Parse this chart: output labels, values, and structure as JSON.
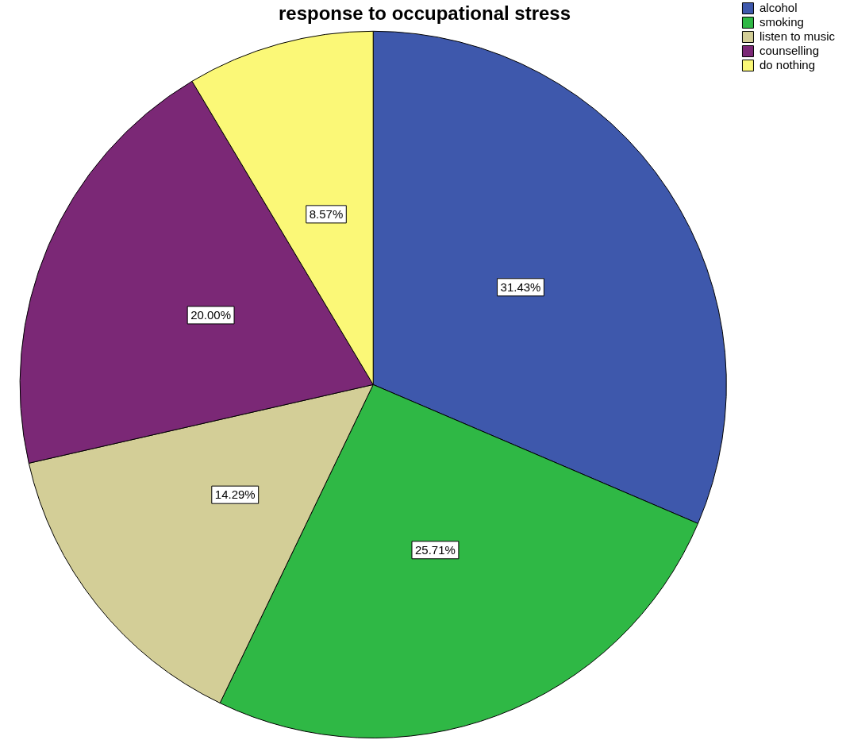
{
  "chart_data": {
    "type": "pie",
    "title": "response to occupational stress",
    "categories": [
      "alcohol",
      "smoking",
      "listen to music",
      "counselling",
      "do nothing"
    ],
    "values": [
      31.43,
      25.71,
      14.29,
      20.0,
      8.57
    ],
    "colors": [
      "#3e58ac",
      "#2fb845",
      "#d3ce97",
      "#7b2876",
      "#fbf877"
    ],
    "value_labels": [
      "31.43%",
      "25.71%",
      "14.29%",
      "20.00%",
      "8.57%"
    ],
    "legend": "top right"
  }
}
